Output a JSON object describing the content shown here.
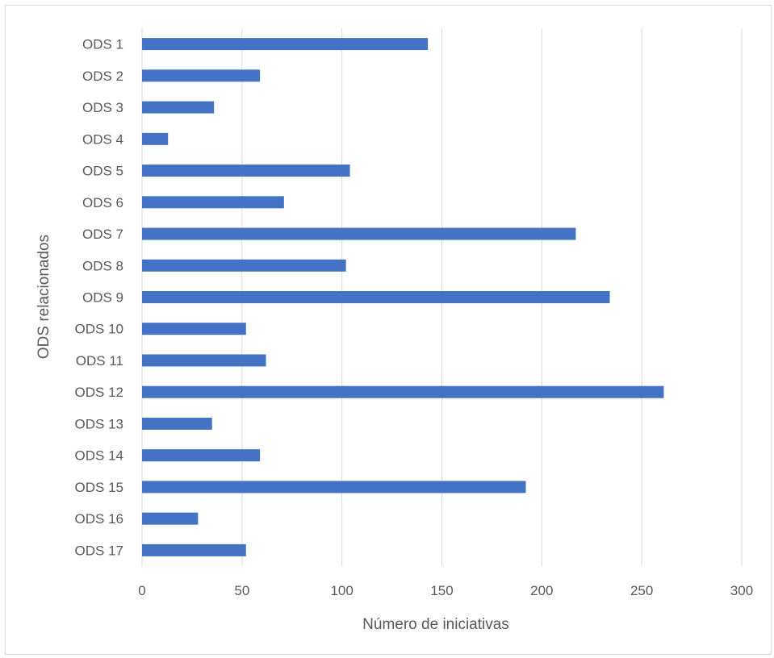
{
  "chart_data": {
    "type": "bar",
    "orientation": "horizontal",
    "title": "",
    "xlabel": "Número de iniciativas",
    "ylabel": "ODS relacionados",
    "categories": [
      "ODS 1",
      "ODS 2",
      "ODS 3",
      "ODS 4",
      "ODS 5",
      "ODS 6",
      "ODS 7",
      "ODS 8",
      "ODS 9",
      "ODS 10",
      "ODS 11",
      "ODS 12",
      "ODS 13",
      "ODS 14",
      "ODS 15",
      "ODS 16",
      "ODS 17"
    ],
    "values": [
      143,
      59,
      36,
      13,
      104,
      71,
      217,
      102,
      234,
      52,
      62,
      261,
      35,
      59,
      192,
      28,
      52
    ],
    "xlim": [
      0,
      300
    ],
    "xticks": [
      "0",
      "50",
      "100",
      "150",
      "200",
      "250",
      "300"
    ],
    "grid": true,
    "legend": "none",
    "bar_color": "#4472c4"
  }
}
